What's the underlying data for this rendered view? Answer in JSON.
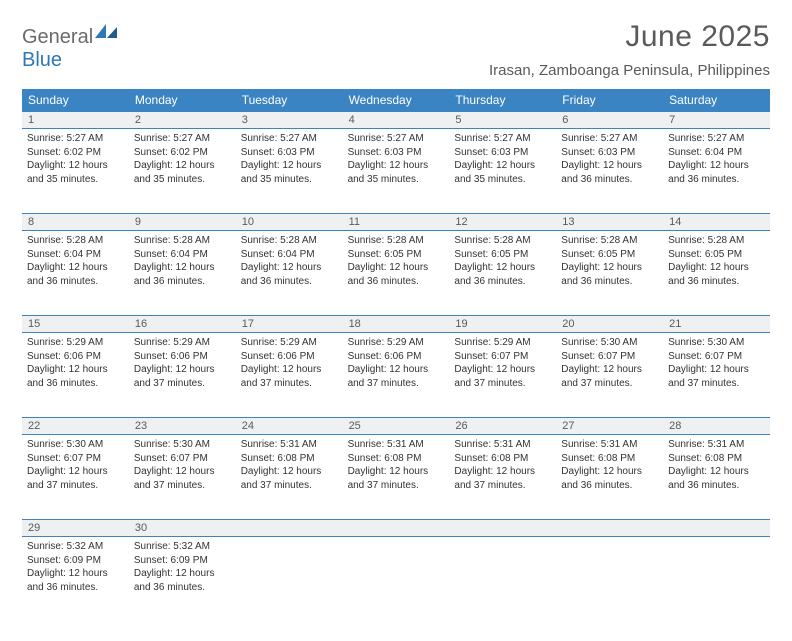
{
  "logo": {
    "part1": "General",
    "part2": "Blue"
  },
  "title": "June 2025",
  "location": "Irasan, Zamboanga Peninsula, Philippines",
  "colors": {
    "header_bg": "#3b84c4",
    "header_text": "#ffffff",
    "daynum_bg": "#eef0f1",
    "border": "#3b84c4",
    "title_color": "#5a5a5a",
    "logo_gray": "#6b6b6b",
    "logo_blue": "#2f77b6"
  },
  "day_labels": [
    "Sunday",
    "Monday",
    "Tuesday",
    "Wednesday",
    "Thursday",
    "Friday",
    "Saturday"
  ],
  "days": [
    {
      "n": "1",
      "sr": "Sunrise: 5:27 AM",
      "ss": "Sunset: 6:02 PM",
      "d1": "Daylight: 12 hours",
      "d2": "and 35 minutes."
    },
    {
      "n": "2",
      "sr": "Sunrise: 5:27 AM",
      "ss": "Sunset: 6:02 PM",
      "d1": "Daylight: 12 hours",
      "d2": "and 35 minutes."
    },
    {
      "n": "3",
      "sr": "Sunrise: 5:27 AM",
      "ss": "Sunset: 6:03 PM",
      "d1": "Daylight: 12 hours",
      "d2": "and 35 minutes."
    },
    {
      "n": "4",
      "sr": "Sunrise: 5:27 AM",
      "ss": "Sunset: 6:03 PM",
      "d1": "Daylight: 12 hours",
      "d2": "and 35 minutes."
    },
    {
      "n": "5",
      "sr": "Sunrise: 5:27 AM",
      "ss": "Sunset: 6:03 PM",
      "d1": "Daylight: 12 hours",
      "d2": "and 35 minutes."
    },
    {
      "n": "6",
      "sr": "Sunrise: 5:27 AM",
      "ss": "Sunset: 6:03 PM",
      "d1": "Daylight: 12 hours",
      "d2": "and 36 minutes."
    },
    {
      "n": "7",
      "sr": "Sunrise: 5:27 AM",
      "ss": "Sunset: 6:04 PM",
      "d1": "Daylight: 12 hours",
      "d2": "and 36 minutes."
    },
    {
      "n": "8",
      "sr": "Sunrise: 5:28 AM",
      "ss": "Sunset: 6:04 PM",
      "d1": "Daylight: 12 hours",
      "d2": "and 36 minutes."
    },
    {
      "n": "9",
      "sr": "Sunrise: 5:28 AM",
      "ss": "Sunset: 6:04 PM",
      "d1": "Daylight: 12 hours",
      "d2": "and 36 minutes."
    },
    {
      "n": "10",
      "sr": "Sunrise: 5:28 AM",
      "ss": "Sunset: 6:04 PM",
      "d1": "Daylight: 12 hours",
      "d2": "and 36 minutes."
    },
    {
      "n": "11",
      "sr": "Sunrise: 5:28 AM",
      "ss": "Sunset: 6:05 PM",
      "d1": "Daylight: 12 hours",
      "d2": "and 36 minutes."
    },
    {
      "n": "12",
      "sr": "Sunrise: 5:28 AM",
      "ss": "Sunset: 6:05 PM",
      "d1": "Daylight: 12 hours",
      "d2": "and 36 minutes."
    },
    {
      "n": "13",
      "sr": "Sunrise: 5:28 AM",
      "ss": "Sunset: 6:05 PM",
      "d1": "Daylight: 12 hours",
      "d2": "and 36 minutes."
    },
    {
      "n": "14",
      "sr": "Sunrise: 5:28 AM",
      "ss": "Sunset: 6:05 PM",
      "d1": "Daylight: 12 hours",
      "d2": "and 36 minutes."
    },
    {
      "n": "15",
      "sr": "Sunrise: 5:29 AM",
      "ss": "Sunset: 6:06 PM",
      "d1": "Daylight: 12 hours",
      "d2": "and 36 minutes."
    },
    {
      "n": "16",
      "sr": "Sunrise: 5:29 AM",
      "ss": "Sunset: 6:06 PM",
      "d1": "Daylight: 12 hours",
      "d2": "and 37 minutes."
    },
    {
      "n": "17",
      "sr": "Sunrise: 5:29 AM",
      "ss": "Sunset: 6:06 PM",
      "d1": "Daylight: 12 hours",
      "d2": "and 37 minutes."
    },
    {
      "n": "18",
      "sr": "Sunrise: 5:29 AM",
      "ss": "Sunset: 6:06 PM",
      "d1": "Daylight: 12 hours",
      "d2": "and 37 minutes."
    },
    {
      "n": "19",
      "sr": "Sunrise: 5:29 AM",
      "ss": "Sunset: 6:07 PM",
      "d1": "Daylight: 12 hours",
      "d2": "and 37 minutes."
    },
    {
      "n": "20",
      "sr": "Sunrise: 5:30 AM",
      "ss": "Sunset: 6:07 PM",
      "d1": "Daylight: 12 hours",
      "d2": "and 37 minutes."
    },
    {
      "n": "21",
      "sr": "Sunrise: 5:30 AM",
      "ss": "Sunset: 6:07 PM",
      "d1": "Daylight: 12 hours",
      "d2": "and 37 minutes."
    },
    {
      "n": "22",
      "sr": "Sunrise: 5:30 AM",
      "ss": "Sunset: 6:07 PM",
      "d1": "Daylight: 12 hours",
      "d2": "and 37 minutes."
    },
    {
      "n": "23",
      "sr": "Sunrise: 5:30 AM",
      "ss": "Sunset: 6:07 PM",
      "d1": "Daylight: 12 hours",
      "d2": "and 37 minutes."
    },
    {
      "n": "24",
      "sr": "Sunrise: 5:31 AM",
      "ss": "Sunset: 6:08 PM",
      "d1": "Daylight: 12 hours",
      "d2": "and 37 minutes."
    },
    {
      "n": "25",
      "sr": "Sunrise: 5:31 AM",
      "ss": "Sunset: 6:08 PM",
      "d1": "Daylight: 12 hours",
      "d2": "and 37 minutes."
    },
    {
      "n": "26",
      "sr": "Sunrise: 5:31 AM",
      "ss": "Sunset: 6:08 PM",
      "d1": "Daylight: 12 hours",
      "d2": "and 37 minutes."
    },
    {
      "n": "27",
      "sr": "Sunrise: 5:31 AM",
      "ss": "Sunset: 6:08 PM",
      "d1": "Daylight: 12 hours",
      "d2": "and 36 minutes."
    },
    {
      "n": "28",
      "sr": "Sunrise: 5:31 AM",
      "ss": "Sunset: 6:08 PM",
      "d1": "Daylight: 12 hours",
      "d2": "and 36 minutes."
    },
    {
      "n": "29",
      "sr": "Sunrise: 5:32 AM",
      "ss": "Sunset: 6:09 PM",
      "d1": "Daylight: 12 hours",
      "d2": "and 36 minutes."
    },
    {
      "n": "30",
      "sr": "Sunrise: 5:32 AM",
      "ss": "Sunset: 6:09 PM",
      "d1": "Daylight: 12 hours",
      "d2": "and 36 minutes."
    }
  ]
}
